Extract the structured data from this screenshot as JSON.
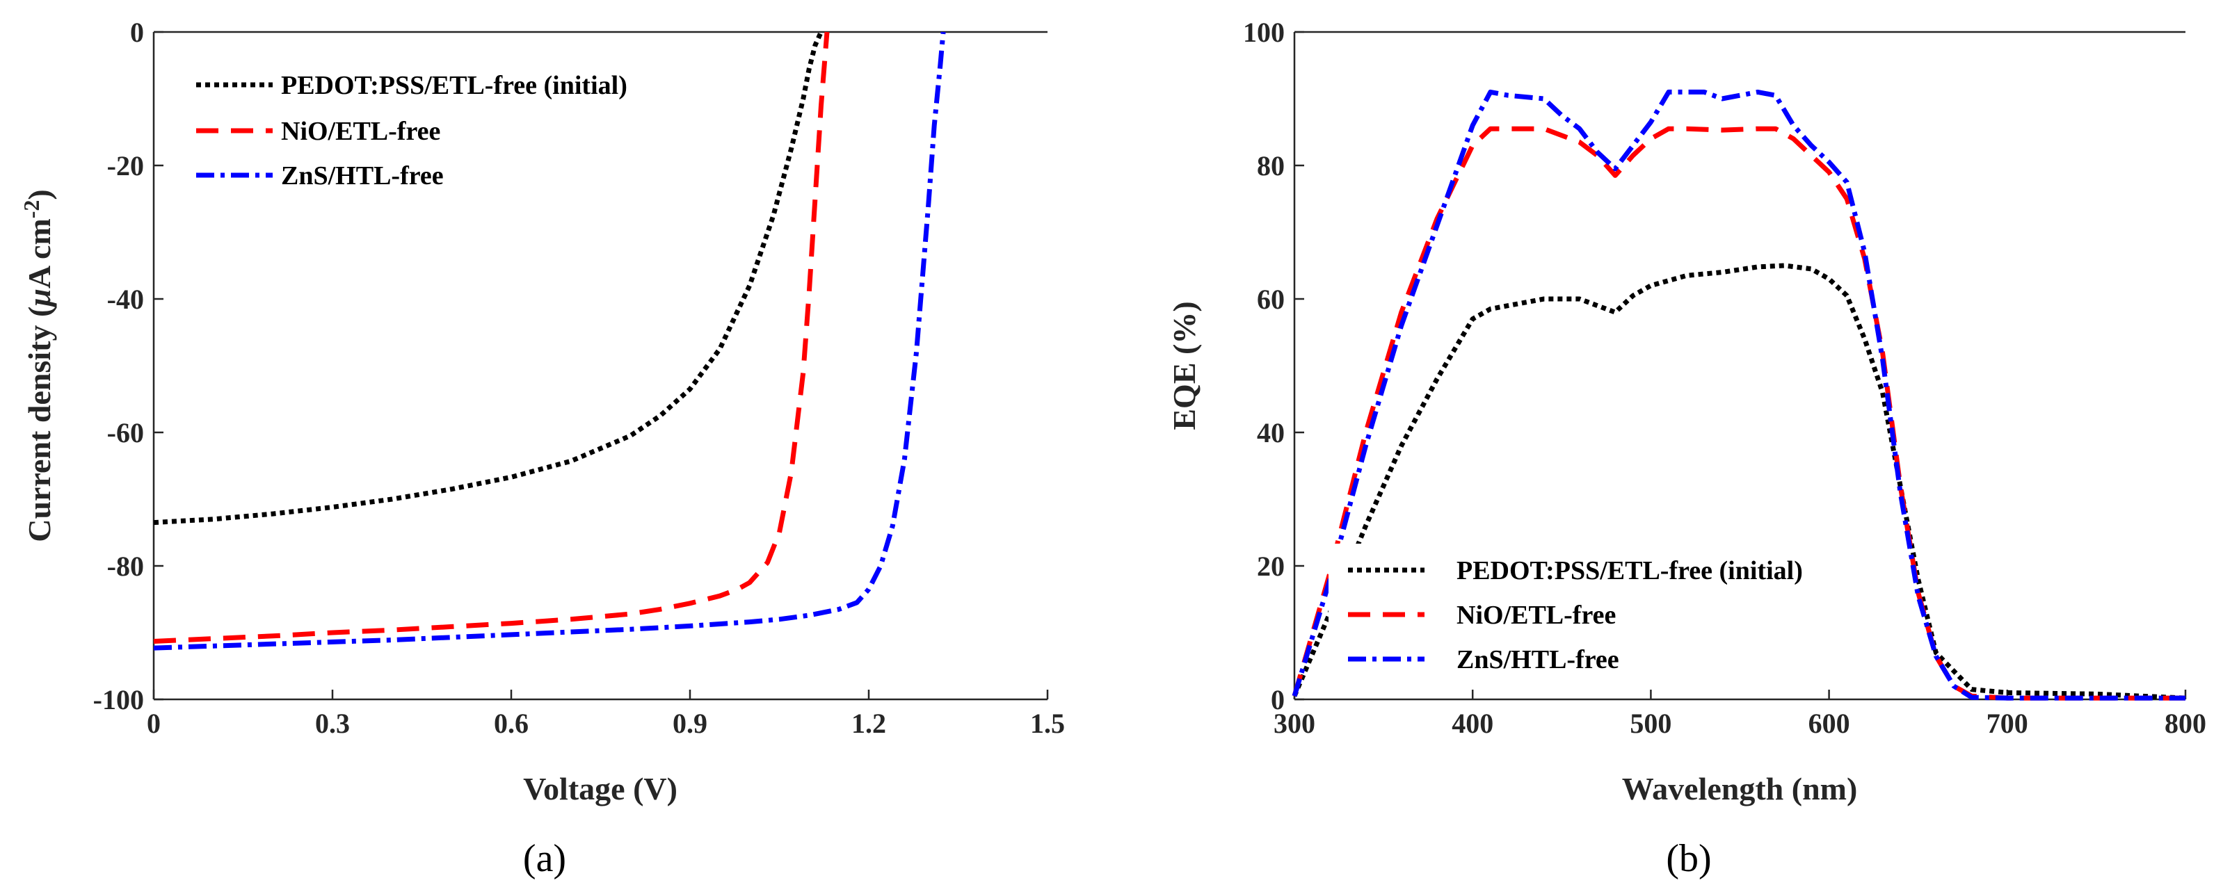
{
  "chart_data": [
    {
      "type": "line",
      "panel_label": "(a)",
      "xlabel": "Voltage (V)",
      "ylabel": "Current density (μA cm⁻²)",
      "xlim": [
        0,
        1.5
      ],
      "ylim": [
        -100,
        0
      ],
      "xticks": [
        "0",
        "0.3",
        "0.6",
        "0.9",
        "1.2",
        "1.5"
      ],
      "yticks": [
        "0",
        "-20",
        "-40",
        "-60",
        "-80",
        "-100"
      ],
      "legend_position": "top-left",
      "series": [
        {
          "name": "PEDOT:PSS/ETL-free (initial)",
          "color": "#000000",
          "style": "dotted",
          "x": [
            0,
            0.1,
            0.2,
            0.3,
            0.4,
            0.5,
            0.6,
            0.7,
            0.8,
            0.85,
            0.9,
            0.95,
            1.0,
            1.04,
            1.07,
            1.09,
            1.1,
            1.11,
            1.12
          ],
          "y": [
            -73.5,
            -73,
            -72.2,
            -71.2,
            -70,
            -68.5,
            -66.7,
            -64.3,
            -60.5,
            -57.5,
            -53.5,
            -47.5,
            -38,
            -27.5,
            -17.5,
            -10,
            -5.5,
            -2,
            0
          ]
        },
        {
          "name": "NiO/ETL-free",
          "color": "#ff0000",
          "style": "dashed",
          "x": [
            0,
            0.1,
            0.2,
            0.3,
            0.4,
            0.5,
            0.6,
            0.7,
            0.8,
            0.85,
            0.9,
            0.95,
            0.98,
            1.0,
            1.03,
            1.05,
            1.07,
            1.09,
            1.1,
            1.11,
            1.12,
            1.13
          ],
          "y": [
            -91.3,
            -90.9,
            -90.5,
            -90.0,
            -89.6,
            -89.1,
            -88.6,
            -88.0,
            -87.2,
            -86.5,
            -85.6,
            -84.5,
            -83.5,
            -82.5,
            -79.5,
            -75,
            -66,
            -51,
            -39,
            -25,
            -11,
            0
          ]
        },
        {
          "name": "ZnS/HTL-free",
          "color": "#0000ff",
          "style": "dashdot",
          "x": [
            0,
            0.1,
            0.2,
            0.3,
            0.4,
            0.5,
            0.6,
            0.7,
            0.8,
            0.9,
            1.0,
            1.05,
            1.1,
            1.15,
            1.18,
            1.2,
            1.22,
            1.24,
            1.26,
            1.28,
            1.3,
            1.31,
            1.32,
            1.325
          ],
          "y": [
            -92.3,
            -92.0,
            -91.7,
            -91.4,
            -91.1,
            -90.7,
            -90.3,
            -89.9,
            -89.5,
            -89.0,
            -88.4,
            -88.0,
            -87.4,
            -86.5,
            -85.5,
            -83.5,
            -80,
            -74,
            -64,
            -48,
            -26,
            -14,
            -5,
            0
          ]
        }
      ]
    },
    {
      "type": "line",
      "panel_label": "(b)",
      "xlabel": "Wavelength (nm)",
      "ylabel": "EQE (%)",
      "xlim": [
        300,
        800
      ],
      "ylim": [
        0,
        100
      ],
      "xticks": [
        "300",
        "400",
        "500",
        "600",
        "700",
        "800"
      ],
      "yticks": [
        "0",
        "20",
        "40",
        "60",
        "80",
        "100"
      ],
      "legend_position": "bottom-left",
      "series": [
        {
          "name": "PEDOT:PSS/ETL-free (initial)",
          "color": "#000000",
          "style": "dotted",
          "x": [
            300,
            320,
            340,
            360,
            380,
            400,
            410,
            420,
            440,
            460,
            470,
            480,
            490,
            500,
            520,
            540,
            560,
            575,
            590,
            600,
            610,
            620,
            630,
            640,
            650,
            660,
            680,
            700,
            750,
            800
          ],
          "y": [
            0.5,
            13,
            26,
            38,
            48,
            57,
            58.5,
            59,
            60,
            60,
            59,
            58,
            60.5,
            62,
            63.5,
            64,
            64.8,
            65,
            64.5,
            63,
            60.5,
            54,
            46,
            32,
            18,
            7,
            1.5,
            1,
            0.8,
            0.2
          ]
        },
        {
          "name": "NiO/ETL-free",
          "color": "#ff0000",
          "style": "dashed",
          "x": [
            300,
            320,
            340,
            360,
            380,
            400,
            410,
            420,
            440,
            460,
            470,
            480,
            490,
            500,
            510,
            520,
            540,
            560,
            570,
            580,
            600,
            610,
            620,
            630,
            640,
            650,
            660,
            670,
            680,
            700,
            800
          ],
          "y": [
            0.5,
            19,
            40,
            58,
            72,
            83,
            85.5,
            85.5,
            85.5,
            83.5,
            81.5,
            78.5,
            81.5,
            84,
            85.5,
            85.5,
            85.3,
            85.5,
            85.5,
            84,
            79,
            75,
            66,
            52,
            32,
            16,
            6.5,
            2,
            0.5,
            0.2,
            0.2
          ]
        },
        {
          "name": "ZnS/HTL-free",
          "color": "#0000ff",
          "style": "dashdot",
          "x": [
            300,
            320,
            340,
            360,
            380,
            400,
            410,
            420,
            440,
            450,
            460,
            470,
            480,
            490,
            500,
            510,
            520,
            530,
            540,
            550,
            560,
            570,
            580,
            590,
            600,
            610,
            620,
            630,
            640,
            650,
            660,
            670,
            680,
            700,
            800
          ],
          "y": [
            0.5,
            18,
            38,
            56,
            71,
            86,
            91,
            90.5,
            90,
            87.5,
            85.5,
            82,
            79.5,
            83,
            86.5,
            91,
            91,
            91,
            90,
            90.5,
            91,
            90.5,
            86,
            83,
            80.5,
            77.5,
            67,
            51,
            31,
            15.5,
            6.5,
            2,
            0.3,
            0.2,
            0.2
          ]
        }
      ]
    }
  ]
}
